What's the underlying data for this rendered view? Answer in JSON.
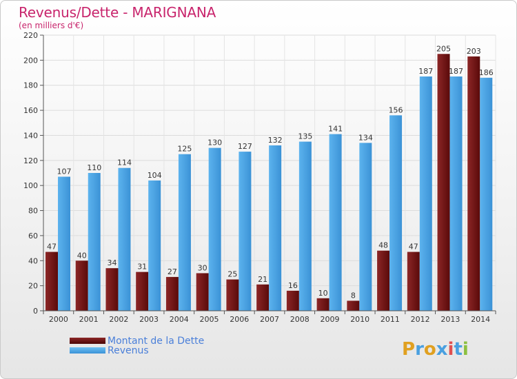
{
  "header": {
    "title": "Revenus/Dette - MARIGNANA",
    "subtitle": "(en milliers d'€)"
  },
  "legend": {
    "items": [
      {
        "label": "Montant de la Dette",
        "color": "#6b1010"
      },
      {
        "label": "Revenus",
        "color": "#4aa0e0"
      }
    ]
  },
  "logo": {
    "text": "Proxiti"
  },
  "colors": {
    "dette": "#6b1010",
    "dette_light": "#8a2a2a",
    "revenus": "#4aa0e0",
    "revenus_light": "#5eb0ec",
    "axis_text": "#333333",
    "grid": "#dddddd",
    "title": "#c8246c"
  },
  "chart_data": {
    "type": "bar",
    "title": "Revenus/Dette - MARIGNANA",
    "subtitle": "(en milliers d'€)",
    "categories": [
      "2000",
      "2001",
      "2002",
      "2003",
      "2004",
      "2005",
      "2006",
      "2007",
      "2008",
      "2009",
      "2010",
      "2011",
      "2012",
      "2013",
      "2014"
    ],
    "series": [
      {
        "name": "Montant de la Dette",
        "values": [
          47,
          40,
          34,
          31,
          27,
          30,
          25,
          21,
          16,
          10,
          8,
          48,
          47,
          205,
          203
        ]
      },
      {
        "name": "Revenus",
        "values": [
          107,
          110,
          114,
          104,
          125,
          130,
          127,
          132,
          135,
          141,
          134,
          156,
          187,
          187,
          186
        ]
      }
    ],
    "ylim": [
      0,
      220
    ],
    "yticks": [
      0,
      20,
      40,
      60,
      80,
      100,
      120,
      140,
      160,
      180,
      200,
      220
    ],
    "grid": true,
    "legend_position": "bottom-left"
  }
}
